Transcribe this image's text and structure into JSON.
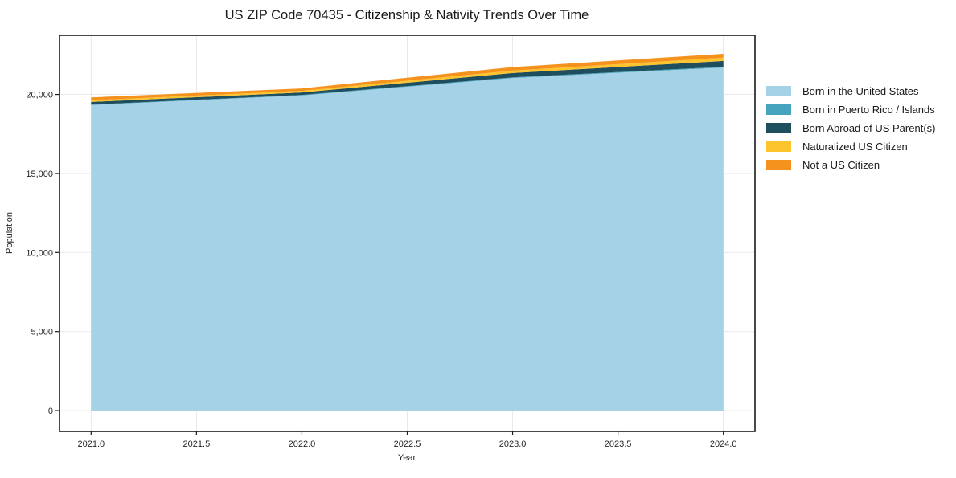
{
  "title": "US ZIP Code 70435 - Citizenship & Nativity Trends Over Time",
  "chart_data": {
    "type": "area",
    "stacked": true,
    "title": "US ZIP Code 70435 - Citizenship & Nativity Trends Over Time",
    "xlabel": "Year",
    "ylabel": "Population",
    "x": [
      2021,
      2022,
      2023,
      2024
    ],
    "x_tick_values": [
      2021.0,
      2021.5,
      2022.0,
      2022.5,
      2023.0,
      2023.5,
      2024.0
    ],
    "x_tick_labels": [
      "2021.0",
      "2021.5",
      "2022.0",
      "2022.5",
      "2023.0",
      "2023.5",
      "2024.0"
    ],
    "y_tick_values": [
      0,
      5000,
      10000,
      15000,
      20000
    ],
    "y_tick_labels": [
      "0",
      "5,000",
      "10,000",
      "15,000",
      "20,000"
    ],
    "xlim": [
      2020.85,
      2024.15
    ],
    "ylim": [
      -1320,
      23740
    ],
    "grid": true,
    "grid_color": "#e7e7e7",
    "frame_color": "#1a1a1a",
    "legend_position": "right",
    "series": [
      {
        "name": "Born in the United States",
        "color": "#a6d2e7",
        "values": [
          19330,
          19940,
          21040,
          21700
        ]
      },
      {
        "name": "Born in Puerto Rico / Islands",
        "color": "#46a4bf",
        "values": [
          30,
          35,
          40,
          50
        ]
      },
      {
        "name": "Born Abroad of US Parent(s)",
        "color": "#1f4e5f",
        "values": [
          165,
          150,
          275,
          370
        ]
      },
      {
        "name": "Naturalized US Citizen",
        "color": "#fdc42e",
        "values": [
          110,
          100,
          155,
          205
        ]
      },
      {
        "name": "Not a US Citizen",
        "color": "#f5921e",
        "values": [
          180,
          155,
          220,
          245
        ]
      }
    ],
    "totals": [
      19815,
      20380,
      21730,
      22570
    ]
  }
}
